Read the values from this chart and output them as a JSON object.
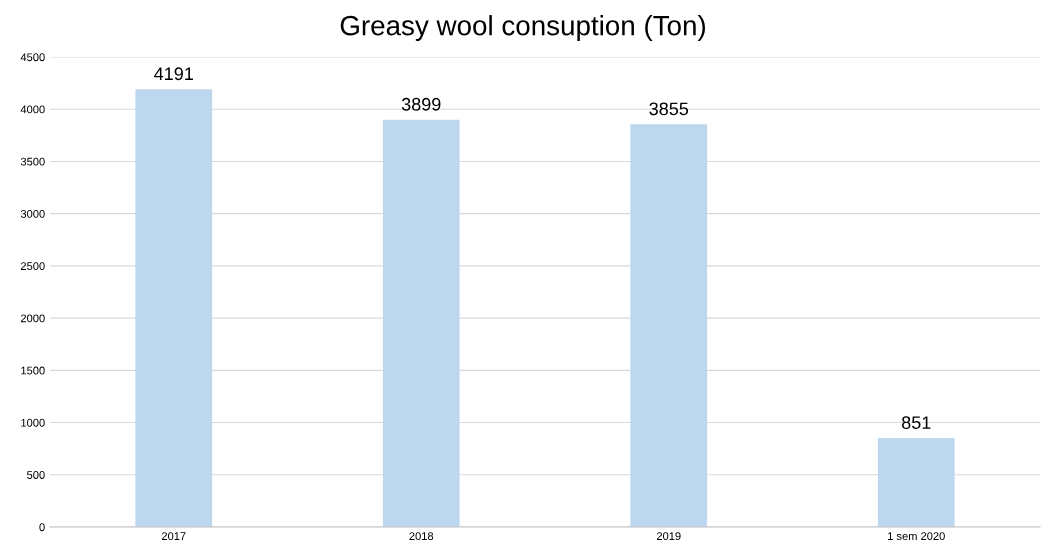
{
  "chart_data": {
    "type": "bar",
    "title": "Greasy wool consuption (Ton)",
    "categories": [
      "2017",
      "2018",
      "2019",
      "1 sem 2020"
    ],
    "values": [
      4191,
      3899,
      3855,
      851
    ],
    "color": "#bdd7ee",
    "ylim": [
      0,
      4500
    ],
    "yticks": [
      0,
      500,
      1000,
      1500,
      2000,
      2500,
      3000,
      3500,
      4000,
      4500
    ],
    "grid": "y",
    "data_labels": true
  }
}
